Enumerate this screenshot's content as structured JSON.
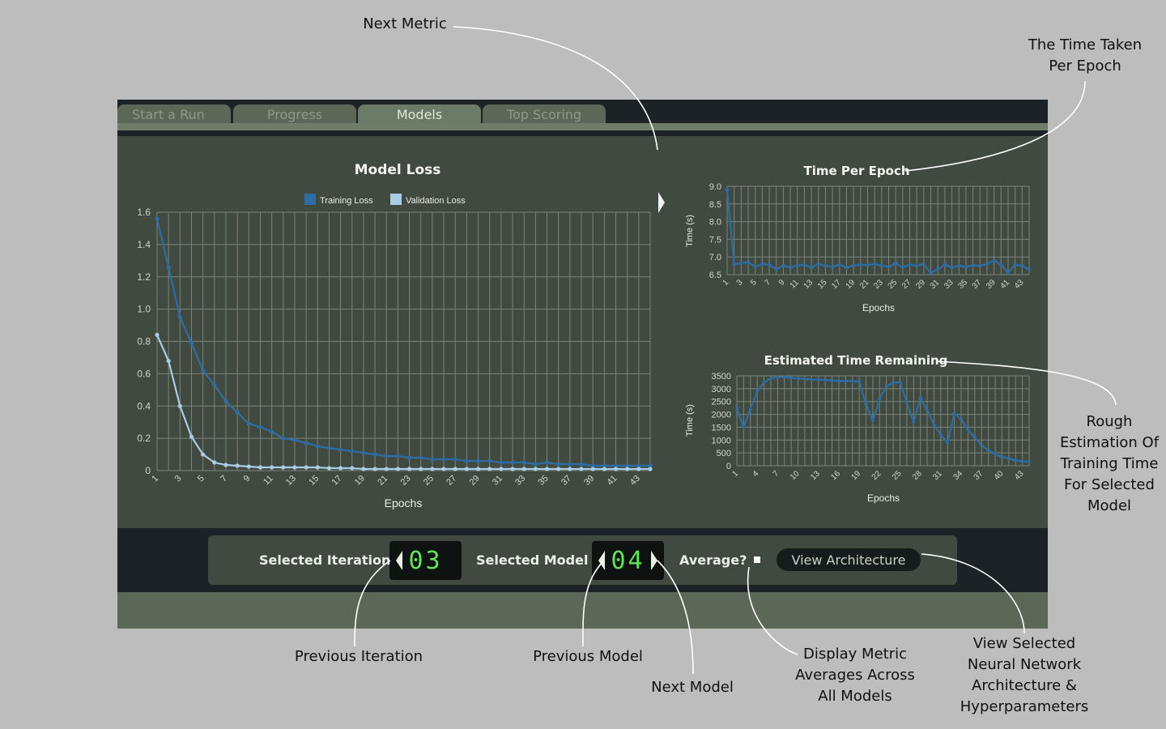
{
  "tabs": [
    {
      "label": "Start a Run",
      "active": false
    },
    {
      "label": "Progress",
      "active": false
    },
    {
      "label": "Models",
      "active": true
    },
    {
      "label": "Top Scoring",
      "active": false
    }
  ],
  "controls": {
    "iteration_label": "Selected Iteration",
    "iteration_value": "03",
    "model_label": "Selected Model",
    "model_value": "04",
    "average_label": "Average?",
    "average_checked": false,
    "view_arch_label": "View Architecture"
  },
  "colors": {
    "training": "#2e6da4",
    "validation": "#a8cde4",
    "accent_digits": "#62e35a"
  },
  "annotations": {
    "next_metric": "Next Metric",
    "time_per_epoch": [
      "The Time Taken",
      "Per Epoch"
    ],
    "rough_estimation": [
      "Rough",
      "Estimation Of",
      "Training Time",
      "For Selected",
      "Model"
    ],
    "previous_iteration": "Previous Iteration",
    "previous_model": "Previous Model",
    "next_model": "Next Model",
    "display_averages": [
      "Display Metric",
      "Averages Across",
      "All Models"
    ],
    "view_network": [
      "View Selected",
      "Neural Network",
      "Architecture &",
      "Hyperparameters"
    ]
  },
  "chart_data": [
    {
      "id": "model_loss",
      "type": "line",
      "title": "Model Loss",
      "xlabel": "Epochs",
      "ylabel": "",
      "ylim": [
        0,
        1.6
      ],
      "yticks": [
        0,
        0.2,
        0.4,
        0.6,
        0.8,
        1.0,
        1.2,
        1.4,
        1.6
      ],
      "ytick_labels": [
        "0",
        "0.2",
        "0.4",
        "0.6",
        "0.8",
        "1.0",
        "1.2",
        "1.4",
        "1.6"
      ],
      "legend": "top",
      "grid": true,
      "xlim": [
        1,
        44
      ],
      "xtick_labels": [
        "1",
        "3",
        "5",
        "7",
        "9",
        "11",
        "13",
        "15",
        "17",
        "19",
        "21",
        "23",
        "25",
        "27",
        "29",
        "31",
        "33",
        "35",
        "37",
        "39",
        "41",
        "43"
      ],
      "series": [
        {
          "name": "Training Loss",
          "color": "#2e6da4",
          "values": [
            1.56,
            1.26,
            0.95,
            0.79,
            0.62,
            0.53,
            0.43,
            0.36,
            0.29,
            0.27,
            0.24,
            0.2,
            0.19,
            0.17,
            0.15,
            0.14,
            0.13,
            0.12,
            0.11,
            0.1,
            0.09,
            0.09,
            0.08,
            0.08,
            0.07,
            0.07,
            0.07,
            0.06,
            0.06,
            0.06,
            0.05,
            0.05,
            0.05,
            0.04,
            0.05,
            0.04,
            0.04,
            0.04,
            0.03,
            0.03,
            0.03,
            0.03,
            0.03,
            0.03
          ]
        },
        {
          "name": "Validation Loss",
          "color": "#a8cde4",
          "values": [
            0.84,
            0.68,
            0.4,
            0.21,
            0.1,
            0.05,
            0.035,
            0.03,
            0.025,
            0.02,
            0.02,
            0.02,
            0.02,
            0.02,
            0.02,
            0.015,
            0.015,
            0.015,
            0.01,
            0.01,
            0.01,
            0.01,
            0.01,
            0.01,
            0.01,
            0.01,
            0.01,
            0.01,
            0.01,
            0.01,
            0.01,
            0.01,
            0.01,
            0.01,
            0.01,
            0.01,
            0.01,
            0.01,
            0.01,
            0.01,
            0.01,
            0.01,
            0.01,
            0.01
          ]
        }
      ]
    },
    {
      "id": "time_per_epoch",
      "type": "line",
      "title": "Time Per Epoch",
      "xlabel": "Epochs",
      "ylabel": "Time (s)",
      "ylim": [
        6.5,
        9.0
      ],
      "yticks": [
        6.5,
        7.0,
        7.5,
        8.0,
        8.5,
        9.0
      ],
      "ytick_labels": [
        "6.5",
        "7.0",
        "7.5",
        "8.0",
        "8.5",
        "9.0"
      ],
      "grid": true,
      "xlim": [
        1,
        44
      ],
      "xtick_labels": [
        "1",
        "3",
        "5",
        "7",
        "9",
        "11",
        "13",
        "15",
        "17",
        "19",
        "21",
        "23",
        "25",
        "27",
        "29",
        "31",
        "33",
        "35",
        "37",
        "39",
        "41",
        "43"
      ],
      "series": [
        {
          "name": "",
          "color": "#2e6da4",
          "values": [
            8.9,
            6.8,
            6.82,
            6.85,
            6.72,
            6.8,
            6.78,
            6.65,
            6.75,
            6.7,
            6.76,
            6.78,
            6.7,
            6.8,
            6.75,
            6.72,
            6.78,
            6.7,
            6.76,
            6.78,
            6.77,
            6.8,
            6.75,
            6.72,
            6.82,
            6.7,
            6.78,
            6.75,
            6.8,
            6.55,
            6.65,
            6.78,
            6.7,
            6.75,
            6.72,
            6.76,
            6.75,
            6.8,
            6.9,
            6.78,
            6.55,
            6.78,
            6.75,
            6.65
          ]
        }
      ]
    },
    {
      "id": "time_remaining",
      "type": "line",
      "title": "Estimated Time Remaining",
      "xlabel": "Epochs",
      "ylabel": "Time (s)",
      "ylim": [
        0,
        3500
      ],
      "yticks": [
        0,
        500,
        1000,
        1500,
        2000,
        2500,
        3000,
        3500
      ],
      "ytick_labels": [
        "0",
        "500",
        "1000",
        "1500",
        "2000",
        "2500",
        "3000",
        "3500"
      ],
      "grid": true,
      "xlim": [
        1,
        44
      ],
      "xtick_labels": [
        "1",
        "4",
        "7",
        "10",
        "13",
        "16",
        "19",
        "22",
        "25",
        "28",
        "31",
        "34",
        "37",
        "40",
        "43"
      ],
      "series": [
        {
          "name": "",
          "color": "#2e6da4",
          "values": [
            2250,
            1500,
            2200,
            2900,
            3250,
            3400,
            3450,
            3450,
            3420,
            3400,
            3380,
            3360,
            3350,
            3340,
            3320,
            3300,
            3300,
            3290,
            3280,
            2400,
            1750,
            2600,
            3100,
            3230,
            3250,
            2450,
            1700,
            2650,
            2150,
            1600,
            1200,
            900,
            2050,
            1800,
            1400,
            1100,
            800,
            600,
            450,
            350,
            280,
            200,
            180,
            150
          ]
        }
      ]
    }
  ]
}
